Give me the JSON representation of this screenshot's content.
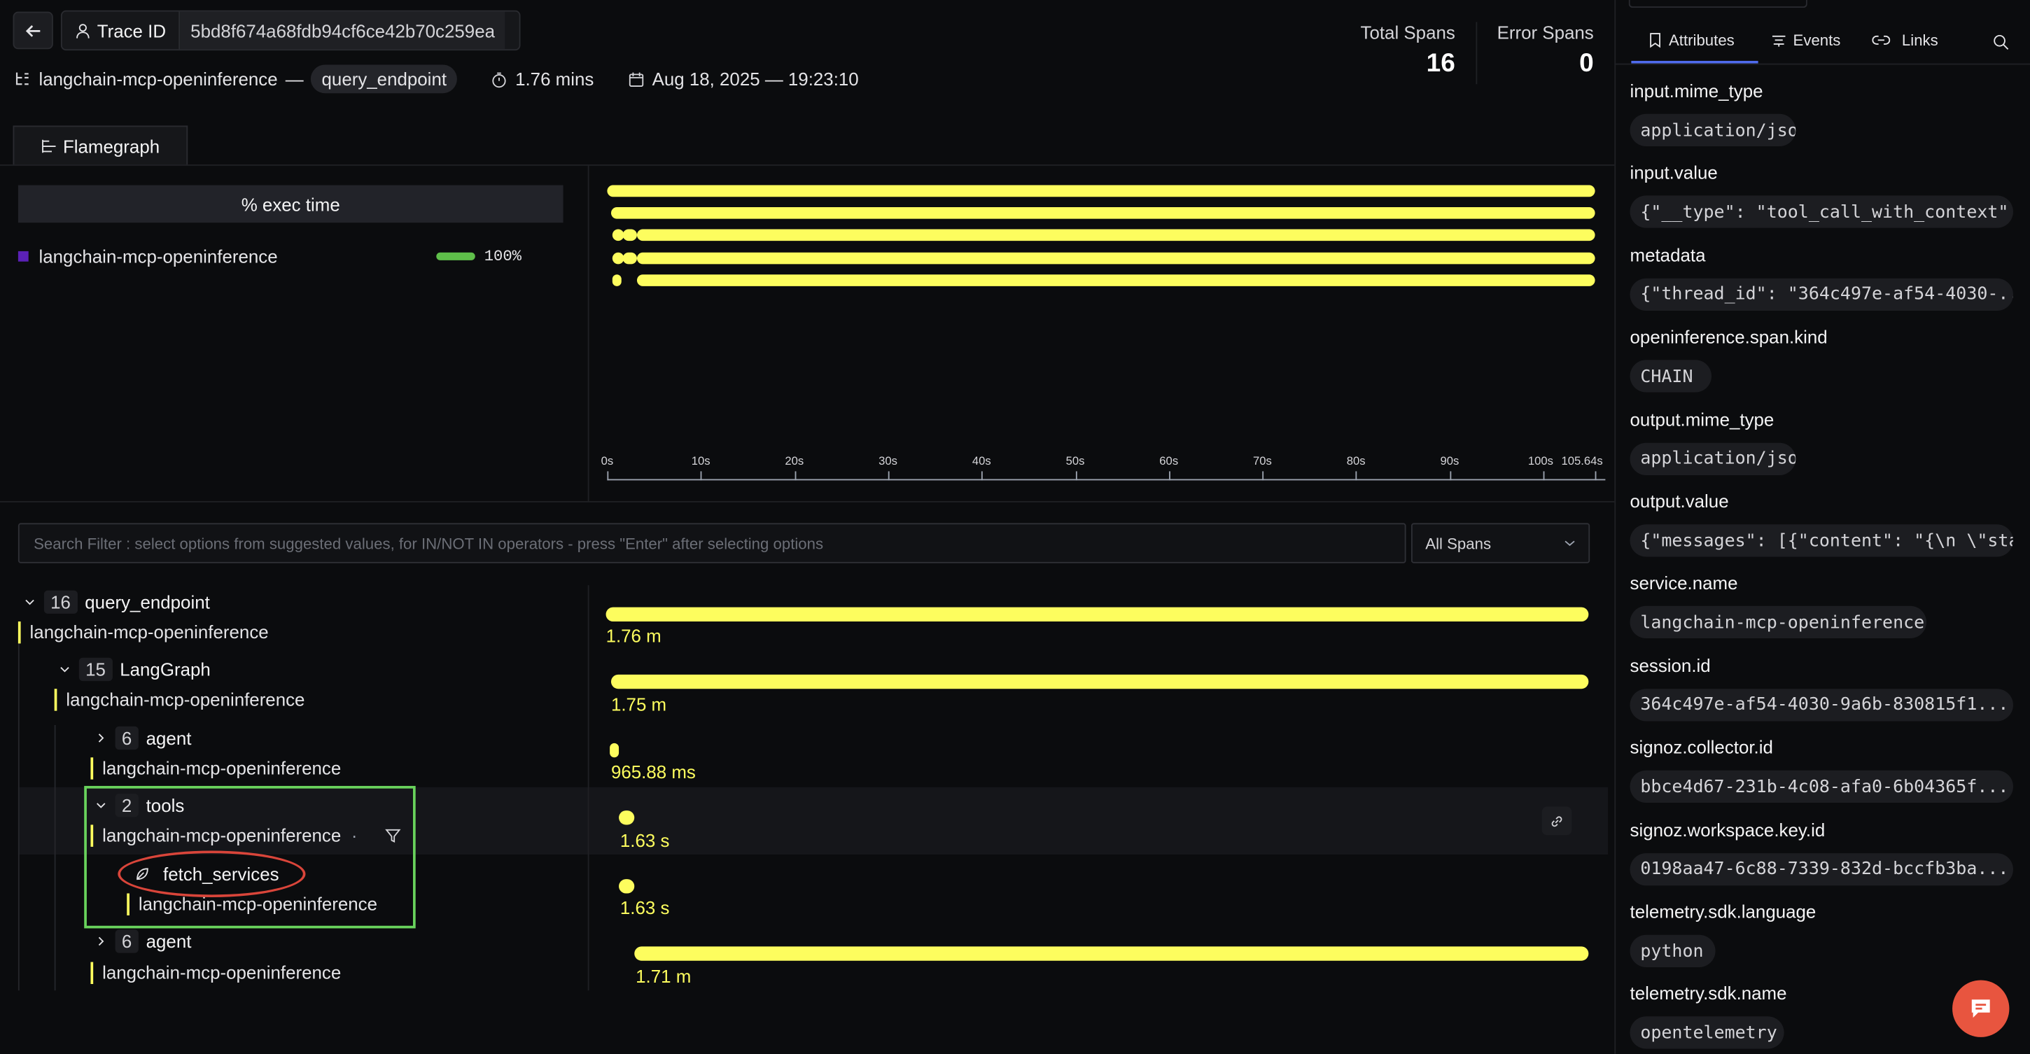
{
  "header": {
    "trace_label": "Trace ID",
    "trace_id": "5bd8f674a68fdb94cf6ce42b70c259ea",
    "service_name": "langchain-mcp-openinference",
    "separator": "—",
    "root_span": "query_endpoint",
    "duration": "1.76 mins",
    "date": "Aug 18, 2025 — 19:23:10",
    "total_spans_label": "Total Spans",
    "total_spans": "16",
    "error_spans_label": "Error Spans",
    "error_spans": "0"
  },
  "flamegraph": {
    "tab_label": "Flamegraph",
    "exec_header": "% exec time",
    "legend_service": "langchain-mcp-openinference",
    "legend_pct": "100%",
    "accent": "#fdfd5e",
    "legend_color": "#5b21b6",
    "pct_bar_color": "#5fbf4a",
    "axis_ticks": [
      "0s",
      "10s",
      "20s",
      "30s",
      "40s",
      "50s",
      "60s",
      "70s",
      "80s",
      "90s",
      "100s",
      "105.64s"
    ]
  },
  "filter": {
    "search_placeholder": "Search Filter : select options from suggested values, for IN/NOT IN operators - press \"Enter\" after selecting options",
    "select_value": "All Spans"
  },
  "spans": [
    {
      "count": "16",
      "name": "query_endpoint",
      "service": "langchain-mcp-openinference",
      "duration": "1.76 m"
    },
    {
      "count": "15",
      "name": "LangGraph",
      "service": "langchain-mcp-openinference",
      "duration": "1.75 m"
    },
    {
      "count": "6",
      "name": "agent",
      "service": "langchain-mcp-openinference",
      "duration": "965.88 ms"
    },
    {
      "count": "2",
      "name": "tools",
      "service": "langchain-mcp-openinference",
      "service_suffix": "·",
      "duration": "1.63 s"
    },
    {
      "name": "fetch_services",
      "service": "langchain-mcp-openinference",
      "duration": "1.63 s"
    },
    {
      "count": "6",
      "name": "agent",
      "service": "langchain-mcp-openinference",
      "duration": "1.71 m"
    }
  ],
  "details": {
    "tabs": [
      "Attributes",
      "Events",
      "Links"
    ],
    "attributes": [
      {
        "key": "input.mime_type",
        "value": "application/json"
      },
      {
        "key": "input.value",
        "value": "{\"__type\": \"tool_call_with_context\", \"to..."
      },
      {
        "key": "metadata",
        "value": "{\"thread_id\": \"364c497e-af54-4030-..."
      },
      {
        "key": "openinference.span.kind",
        "value": "CHAIN"
      },
      {
        "key": "output.mime_type",
        "value": "application/json"
      },
      {
        "key": "output.value",
        "value": "{\"messages\": [{\"content\": \"{\\n \\\"statu..."
      },
      {
        "key": "service.name",
        "value": "langchain-mcp-openinference"
      },
      {
        "key": "session.id",
        "value": "364c497e-af54-4030-9a6b-830815f1..."
      },
      {
        "key": "signoz.collector.id",
        "value": "bbce4d67-231b-4c08-afa0-6b04365f..."
      },
      {
        "key": "signoz.workspace.key.id",
        "value": "0198aa47-6c88-7339-832d-bccfb3ba..."
      },
      {
        "key": "telemetry.sdk.language",
        "value": "python"
      },
      {
        "key": "telemetry.sdk.name",
        "value": "opentelemetry"
      }
    ]
  }
}
